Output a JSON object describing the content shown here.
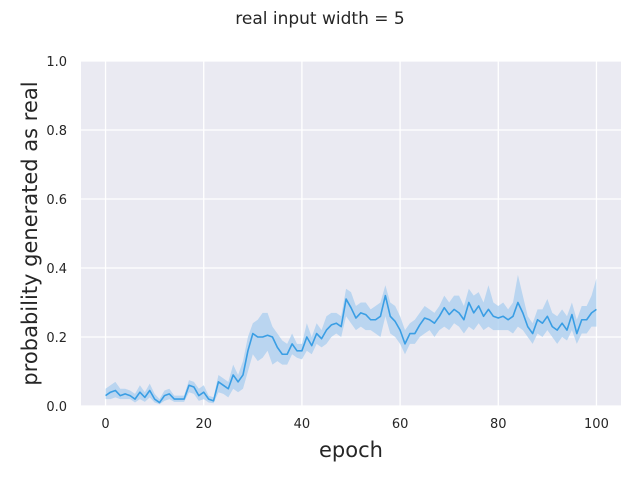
{
  "chart_data": {
    "type": "line",
    "title": "real input width = 5",
    "xlabel": "epoch",
    "ylabel": "probability generated as real",
    "xlim": [
      -5,
      105
    ],
    "ylim": [
      0,
      1
    ],
    "xticks": [
      0,
      20,
      40,
      60,
      80,
      100
    ],
    "yticks": [
      0.0,
      0.2,
      0.4,
      0.6,
      0.8,
      1.0
    ],
    "xtick_labels": [
      "0",
      "20",
      "40",
      "60",
      "80",
      "100"
    ],
    "ytick_labels": [
      "0.0",
      "0.2",
      "0.4",
      "0.6",
      "0.8",
      "1.0"
    ],
    "grid": true,
    "style": {
      "background": "#eaeaf2",
      "grid_color": "#ffffff",
      "line_color": "#3a9ee4",
      "band_color": "#a9cdef"
    },
    "series": [
      {
        "x": [
          0,
          1,
          2,
          3,
          4,
          5,
          6,
          7,
          8,
          9,
          10,
          11,
          12,
          13,
          14,
          15,
          16,
          17,
          18,
          19,
          20,
          21,
          22,
          23,
          24,
          25,
          26,
          27,
          28,
          29,
          30,
          31,
          32,
          33,
          34,
          35,
          36,
          37,
          38,
          39,
          40,
          41,
          42,
          43,
          44,
          45,
          46,
          47,
          48,
          49,
          50,
          51,
          52,
          53,
          54,
          55,
          56,
          57,
          58,
          59,
          60,
          61,
          62,
          63,
          64,
          65,
          66,
          67,
          68,
          69,
          70,
          71,
          72,
          73,
          74,
          75,
          76,
          77,
          78,
          79,
          80,
          81,
          82,
          83,
          84,
          85,
          86,
          87,
          88,
          89,
          90,
          91,
          92,
          93,
          94,
          95,
          96,
          97,
          98,
          99,
          100
        ],
        "values": [
          0.03,
          0.04,
          0.045,
          0.03,
          0.035,
          0.03,
          0.02,
          0.04,
          0.025,
          0.045,
          0.02,
          0.01,
          0.03,
          0.035,
          0.02,
          0.02,
          0.02,
          0.06,
          0.055,
          0.03,
          0.04,
          0.02,
          0.015,
          0.07,
          0.06,
          0.05,
          0.09,
          0.07,
          0.09,
          0.16,
          0.21,
          0.2,
          0.2,
          0.205,
          0.2,
          0.17,
          0.15,
          0.15,
          0.18,
          0.16,
          0.16,
          0.2,
          0.175,
          0.21,
          0.195,
          0.22,
          0.235,
          0.24,
          0.23,
          0.31,
          0.285,
          0.255,
          0.27,
          0.265,
          0.25,
          0.25,
          0.26,
          0.32,
          0.26,
          0.245,
          0.22,
          0.18,
          0.21,
          0.21,
          0.235,
          0.255,
          0.25,
          0.24,
          0.26,
          0.285,
          0.265,
          0.28,
          0.27,
          0.25,
          0.3,
          0.27,
          0.29,
          0.26,
          0.28,
          0.26,
          0.255,
          0.26,
          0.25,
          0.26,
          0.3,
          0.27,
          0.23,
          0.21,
          0.25,
          0.24,
          0.26,
          0.23,
          0.22,
          0.24,
          0.22,
          0.265,
          0.21,
          0.25,
          0.25,
          0.27,
          0.28
        ],
        "lower": [
          0.02,
          0.02,
          0.025,
          0.02,
          0.02,
          0.02,
          0.01,
          0.02,
          0.012,
          0.025,
          0.01,
          0.005,
          0.015,
          0.02,
          0.012,
          0.012,
          0.012,
          0.04,
          0.035,
          0.015,
          0.02,
          0.01,
          0.008,
          0.04,
          0.035,
          0.025,
          0.05,
          0.04,
          0.05,
          0.1,
          0.15,
          0.13,
          0.14,
          0.16,
          0.12,
          0.13,
          0.12,
          0.12,
          0.15,
          0.14,
          0.135,
          0.16,
          0.15,
          0.18,
          0.17,
          0.18,
          0.2,
          0.21,
          0.2,
          0.26,
          0.24,
          0.22,
          0.23,
          0.22,
          0.22,
          0.21,
          0.2,
          0.26,
          0.21,
          0.2,
          0.18,
          0.15,
          0.18,
          0.18,
          0.2,
          0.21,
          0.22,
          0.2,
          0.22,
          0.23,
          0.22,
          0.24,
          0.23,
          0.21,
          0.23,
          0.22,
          0.24,
          0.22,
          0.23,
          0.22,
          0.22,
          0.22,
          0.22,
          0.21,
          0.23,
          0.22,
          0.2,
          0.18,
          0.21,
          0.2,
          0.22,
          0.2,
          0.18,
          0.2,
          0.19,
          0.22,
          0.18,
          0.21,
          0.21,
          0.23,
          0.23
        ],
        "upper": [
          0.05,
          0.06,
          0.07,
          0.05,
          0.05,
          0.045,
          0.035,
          0.06,
          0.04,
          0.065,
          0.035,
          0.02,
          0.045,
          0.05,
          0.03,
          0.03,
          0.03,
          0.075,
          0.07,
          0.05,
          0.06,
          0.03,
          0.025,
          0.09,
          0.08,
          0.07,
          0.12,
          0.09,
          0.13,
          0.2,
          0.24,
          0.25,
          0.27,
          0.27,
          0.23,
          0.21,
          0.19,
          0.18,
          0.21,
          0.18,
          0.18,
          0.24,
          0.2,
          0.24,
          0.22,
          0.26,
          0.27,
          0.27,
          0.26,
          0.34,
          0.33,
          0.29,
          0.3,
          0.3,
          0.28,
          0.29,
          0.3,
          0.35,
          0.3,
          0.29,
          0.26,
          0.22,
          0.24,
          0.25,
          0.27,
          0.29,
          0.28,
          0.27,
          0.29,
          0.32,
          0.3,
          0.32,
          0.32,
          0.29,
          0.34,
          0.32,
          0.33,
          0.3,
          0.35,
          0.3,
          0.29,
          0.3,
          0.28,
          0.3,
          0.38,
          0.32,
          0.26,
          0.24,
          0.28,
          0.28,
          0.31,
          0.27,
          0.26,
          0.28,
          0.26,
          0.3,
          0.25,
          0.29,
          0.29,
          0.32,
          0.37
        ]
      }
    ]
  }
}
